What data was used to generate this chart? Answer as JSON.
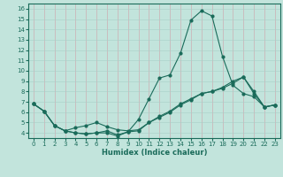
{
  "xlabel": "Humidex (Indice chaleur)",
  "xlim": [
    -0.5,
    23.5
  ],
  "ylim": [
    3.5,
    16.5
  ],
  "xticks": [
    0,
    1,
    2,
    3,
    4,
    5,
    6,
    7,
    8,
    9,
    10,
    11,
    12,
    13,
    14,
    15,
    16,
    17,
    18,
    19,
    20,
    21,
    22,
    23
  ],
  "yticks": [
    4,
    5,
    6,
    7,
    8,
    9,
    10,
    11,
    12,
    13,
    14,
    15,
    16
  ],
  "bg_color": "#c2e4dc",
  "grid_color": "#a8cfc8",
  "line_color": "#1a6b5a",
  "line1_x": [
    0,
    1,
    2,
    3,
    4,
    5,
    6,
    7,
    8,
    9,
    10,
    11,
    12,
    13,
    14,
    15,
    16,
    17,
    18,
    19,
    20,
    21,
    22,
    23
  ],
  "line1_y": [
    6.8,
    6.1,
    4.7,
    4.2,
    4.0,
    3.9,
    4.0,
    4.2,
    3.8,
    4.1,
    5.3,
    7.3,
    9.3,
    9.6,
    11.7,
    14.9,
    15.8,
    15.3,
    11.4,
    8.6,
    7.8,
    7.5,
    6.5,
    6.7
  ],
  "line2_x": [
    0,
    1,
    2,
    3,
    4,
    5,
    6,
    7,
    8,
    9,
    10,
    11,
    12,
    13,
    14,
    15,
    16,
    17,
    18,
    19,
    20,
    21,
    22,
    23
  ],
  "line2_y": [
    6.8,
    6.1,
    4.7,
    4.2,
    4.5,
    4.7,
    5.0,
    4.6,
    4.3,
    4.2,
    4.3,
    5.0,
    5.5,
    6.0,
    6.7,
    7.2,
    7.8,
    8.0,
    8.3,
    8.8,
    9.4,
    8.0,
    6.5,
    6.7
  ],
  "line3_x": [
    0,
    1,
    2,
    3,
    4,
    5,
    6,
    7,
    8,
    9,
    10,
    11,
    12,
    13,
    14,
    15,
    16,
    17,
    18,
    19,
    20,
    21,
    22,
    23
  ],
  "line3_y": [
    6.8,
    6.1,
    4.7,
    4.2,
    4.0,
    3.9,
    4.0,
    4.0,
    3.7,
    4.1,
    4.2,
    5.0,
    5.6,
    6.1,
    6.8,
    7.3,
    7.8,
    8.0,
    8.4,
    9.0,
    9.4,
    7.8,
    6.5,
    6.7
  ]
}
